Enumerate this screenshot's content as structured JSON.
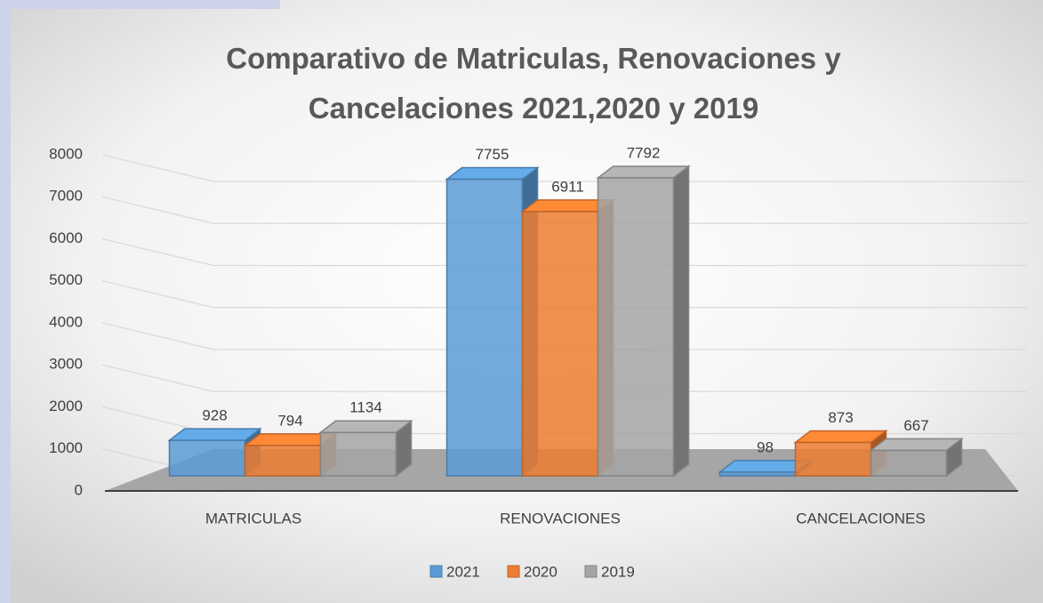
{
  "chart_data": {
    "type": "bar3d",
    "title": "Comparativo de Matriculas, Renovaciones y Cancelaciones 2021,2020 y 2019",
    "categories": [
      "MATRICULAS",
      "RENOVACIONES",
      "CANCELACIONES"
    ],
    "series": [
      {
        "name": "2021",
        "color": "#5b9bd5",
        "values": [
          928,
          7755,
          98
        ]
      },
      {
        "name": "2020",
        "color": "#ed7d31",
        "values": [
          794,
          6911,
          873
        ]
      },
      {
        "name": "2019",
        "color": "#a5a5a5",
        "values": [
          1134,
          7792,
          667
        ]
      }
    ],
    "ylim": [
      0,
      8000
    ],
    "yticks": [
      0,
      1000,
      2000,
      3000,
      4000,
      5000,
      6000,
      7000,
      8000
    ],
    "grid": true,
    "legend": "bottom"
  }
}
